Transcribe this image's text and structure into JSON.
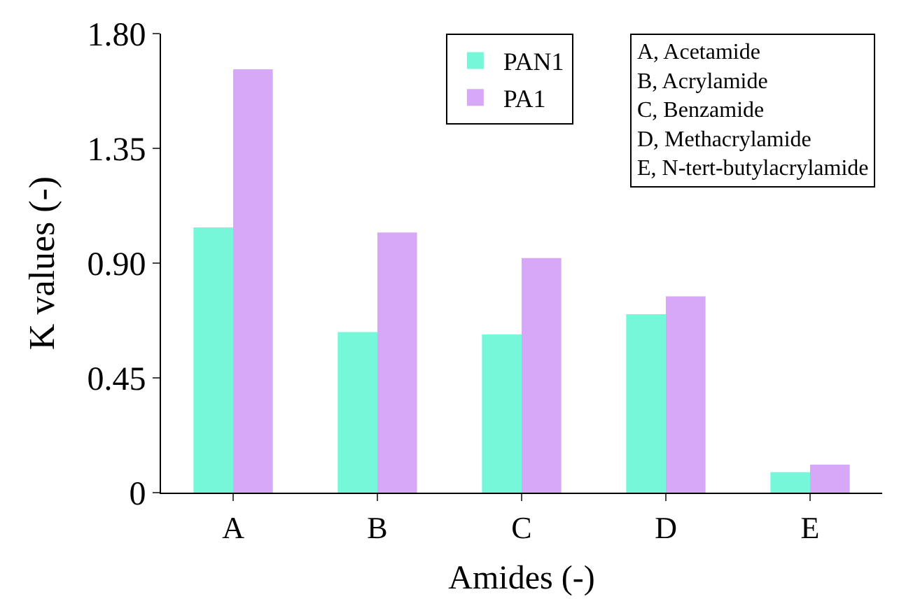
{
  "chart_data": {
    "type": "bar",
    "xlabel": "Amides (-)",
    "ylabel": "K values (-)",
    "categories": [
      "A",
      "B",
      "C",
      "D",
      "E"
    ],
    "series": [
      {
        "name": "PAN1",
        "color": "#77f7d9",
        "values": [
          1.04,
          0.63,
          0.62,
          0.7,
          0.08
        ]
      },
      {
        "name": "PA1",
        "color": "#d7a8f7",
        "values": [
          1.66,
          1.02,
          0.92,
          0.77,
          0.11
        ]
      }
    ],
    "ylim": [
      0,
      1.8
    ],
    "yticks": [
      {
        "value": 0,
        "label": "0"
      },
      {
        "value": 0.45,
        "label": "0.45"
      },
      {
        "value": 0.9,
        "label": "0.90"
      },
      {
        "value": 1.35,
        "label": "1.35"
      },
      {
        "value": 1.8,
        "label": "1.80"
      }
    ],
    "legend": "top right",
    "annotations": [
      "A, Acetamide",
      "B, Acrylamide",
      "C, Benzamide",
      "D, Methacrylamide",
      "E, N-tert-butylacrylamide"
    ]
  }
}
